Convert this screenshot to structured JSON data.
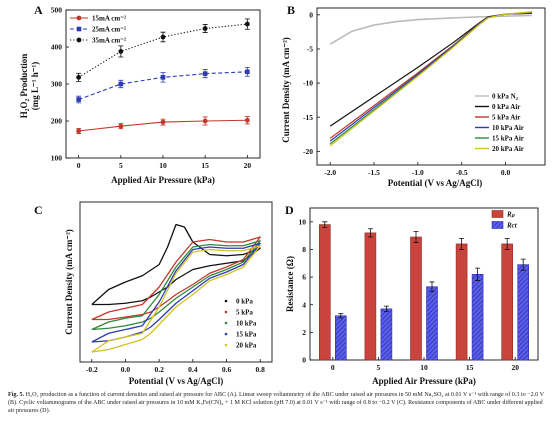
{
  "caption": {
    "figure_no": "Fig. 5.",
    "text": "H₂O₂ production as a function of current densities and raised air pressure for ABC (A). Linear sweep voltammetry of the ABC under raised air pressures in 50 mM Na₂SO₄ at 0.01 V s⁻¹ with range of 0.3 to −2.0 V (B). Cyclic voltammograms of the ABC under raised air pressures in 10 mM K₃Fe(CN)₆ + 1 M KCl solution (pH 7.0) at 0.01 V s⁻¹ with range of 0.8 to −0.2 V (C). Resistance components of ABC under different applied air pressures (D)."
  },
  "chart_data": [
    {
      "panel": "A",
      "type": "line",
      "xlabel": "Applied Air Pressure (kPa)",
      "ylabel": "H₂O₂ Production (mg L⁻¹ h⁻¹)",
      "xlim": [
        -1.5,
        21.5
      ],
      "ylim": [
        100,
        500
      ],
      "xticks": [
        0,
        5,
        10,
        15,
        20
      ],
      "yticks": [
        100,
        200,
        300,
        400,
        500
      ],
      "x": [
        0,
        5,
        10,
        15,
        20
      ],
      "legend_position": "top-left",
      "series": [
        {
          "name": "15mA cm⁻²",
          "values": [
            173,
            186,
            197,
            200,
            202
          ],
          "errors": [
            7,
            7,
            8,
            11,
            10
          ],
          "color": "#c0392b",
          "style": "solid",
          "marker": "circle"
        },
        {
          "name": "25mA cm⁻²",
          "values": [
            258,
            300,
            318,
            328,
            333
          ],
          "errors": [
            9,
            10,
            13,
            11,
            12
          ],
          "color": "#2e3bb5",
          "style": "dashed",
          "marker": "square"
        },
        {
          "name": "35mA cm⁻²",
          "values": [
            318,
            388,
            427,
            450,
            462
          ],
          "errors": [
            11,
            15,
            13,
            11,
            14
          ],
          "color": "#111111",
          "style": "dotted",
          "marker": "circle"
        }
      ]
    },
    {
      "panel": "B",
      "type": "line",
      "xlabel": "Potential (V vs Ag/AgCl)",
      "ylabel": "Current Density (mA cm⁻²)",
      "xlim": [
        -2.15,
        0.45
      ],
      "ylim": [
        -22,
        1
      ],
      "xticks": [
        -2.0,
        -1.5,
        -1.0,
        -0.5,
        0.0
      ],
      "xtick_labels": [
        "-2.0",
        "-1.5",
        "-1.0",
        "-0.5",
        "0.0"
      ],
      "yticks": [
        0,
        -5,
        -10,
        -15,
        -20
      ],
      "legend_position": "bottom-right",
      "series": [
        {
          "name": "0 kPa N₂",
          "color": "#bbbbbb",
          "x": [
            -2.0,
            -1.75,
            -1.5,
            -1.25,
            -1.0,
            -0.6,
            -0.3,
            0.0,
            0.3
          ],
          "values": [
            -4.3,
            -2.4,
            -1.5,
            -1.0,
            -0.7,
            -0.45,
            -0.3,
            -0.2,
            -0.1
          ]
        },
        {
          "name": "0 kPa Air",
          "color": "#111111",
          "x": [
            -2.0,
            -1.5,
            -1.0,
            -0.6,
            -0.3,
            -0.2,
            0.0,
            0.3
          ],
          "values": [
            -16.3,
            -12.0,
            -7.7,
            -4.1,
            -1.2,
            -0.3,
            0.1,
            0.2
          ]
        },
        {
          "name": "5 kPa Air",
          "color": "#c0392b",
          "x": [
            -2.0,
            -1.5,
            -1.0,
            -0.6,
            -0.3,
            -0.2,
            0.0,
            0.3
          ],
          "values": [
            -18.1,
            -13.3,
            -8.5,
            -4.5,
            -1.3,
            -0.4,
            0.1,
            0.3
          ]
        },
        {
          "name": "10 kPa Air",
          "color": "#2e3bb5",
          "x": [
            -2.0,
            -1.5,
            -1.0,
            -0.6,
            -0.3,
            -0.2,
            0.0,
            0.3
          ],
          "values": [
            -18.5,
            -13.6,
            -8.7,
            -4.6,
            -1.35,
            -0.4,
            0.1,
            0.35
          ]
        },
        {
          "name": "15 kPa Air",
          "color": "#2e8b3a",
          "x": [
            -2.0,
            -1.5,
            -1.0,
            -0.6,
            -0.3,
            -0.2,
            0.0,
            0.3
          ],
          "values": [
            -18.9,
            -13.9,
            -8.9,
            -4.7,
            -1.4,
            -0.45,
            0.1,
            0.4
          ]
        },
        {
          "name": "20 kPa Air",
          "color": "#d4c21f",
          "x": [
            -2.0,
            -1.5,
            -1.0,
            -0.6,
            -0.3,
            -0.2,
            0.0,
            0.3
          ],
          "values": [
            -19.2,
            -14.1,
            -9.0,
            -4.8,
            -1.45,
            -0.45,
            0.1,
            0.45
          ]
        }
      ]
    },
    {
      "panel": "C",
      "type": "line",
      "xlabel": "Potential (V vs Ag/AgCl)",
      "ylabel": "Current Density (mA cm⁻²)",
      "xlim": [
        -0.27,
        0.87
      ],
      "ylim": [
        -3.3,
        3.1
      ],
      "xticks": [
        -0.2,
        0.0,
        0.2,
        0.4,
        0.6,
        0.8
      ],
      "xtick_labels": [
        "-0.2",
        "0.0",
        "0.2",
        "0.4",
        "0.6",
        "0.8"
      ],
      "yticks": [],
      "legend_position": "bottom-right",
      "series": [
        {
          "name": "0 kPa",
          "color": "#111111",
          "forward": {
            "x": [
              -0.2,
              -0.1,
              0.0,
              0.1,
              0.2,
              0.25,
              0.3,
              0.35,
              0.4,
              0.5,
              0.6,
              0.7,
              0.8
            ],
            "values": [
              -1.0,
              -0.4,
              -0.1,
              0.15,
              0.6,
              1.3,
              2.2,
              2.1,
              1.5,
              1.0,
              0.95,
              1.0,
              1.25
            ]
          },
          "reverse": {
            "x": [
              0.8,
              0.7,
              0.6,
              0.5,
              0.4,
              0.3,
              0.25,
              0.2,
              0.15,
              0.1,
              0.0,
              -0.1,
              -0.2
            ],
            "values": [
              1.25,
              0.75,
              0.65,
              0.55,
              0.4,
              0.0,
              -0.3,
              -0.5,
              -0.7,
              -0.85,
              -0.95,
              -1.0,
              -1.0
            ]
          }
        },
        {
          "name": "5 kPa",
          "color": "#c0392b",
          "forward": {
            "x": [
              -0.2,
              -0.1,
              0.0,
              0.1,
              0.2,
              0.3,
              0.4,
              0.5,
              0.6,
              0.7,
              0.8
            ],
            "values": [
              -1.6,
              -1.3,
              -1.15,
              -1.0,
              -0.3,
              0.7,
              1.5,
              1.6,
              1.5,
              1.5,
              1.7
            ]
          },
          "reverse": {
            "x": [
              0.8,
              0.7,
              0.6,
              0.5,
              0.4,
              0.3,
              0.2,
              0.15,
              0.1,
              0.0,
              -0.1,
              -0.2
            ],
            "values": [
              1.7,
              0.8,
              0.5,
              0.25,
              -0.2,
              -0.6,
              -1.1,
              -1.3,
              -1.4,
              -1.5,
              -1.6,
              -1.6
            ]
          }
        },
        {
          "name": "10 kPa",
          "color": "#2e8b3a",
          "forward": {
            "x": [
              -0.2,
              -0.1,
              0.0,
              0.1,
              0.2,
              0.3,
              0.4,
              0.5,
              0.6,
              0.7,
              0.8
            ],
            "values": [
              -2.0,
              -1.7,
              -1.55,
              -1.45,
              -0.6,
              0.5,
              1.3,
              1.4,
              1.35,
              1.35,
              1.55
            ]
          },
          "reverse": {
            "x": [
              0.8,
              0.7,
              0.6,
              0.5,
              0.4,
              0.3,
              0.2,
              0.15,
              0.1,
              0.0,
              -0.1,
              -0.2
            ],
            "values": [
              1.55,
              0.7,
              0.4,
              0.15,
              -0.3,
              -0.75,
              -1.3,
              -1.55,
              -1.7,
              -1.85,
              -1.95,
              -2.0
            ]
          }
        },
        {
          "name": "15 kPa",
          "color": "#2e3bb5",
          "forward": {
            "x": [
              -0.2,
              -0.1,
              0.0,
              0.1,
              0.2,
              0.3,
              0.4,
              0.5,
              0.6,
              0.7,
              0.8
            ],
            "values": [
              -2.5,
              -2.15,
              -2.0,
              -1.85,
              -0.9,
              0.35,
              1.2,
              1.3,
              1.25,
              1.25,
              1.45
            ]
          },
          "reverse": {
            "x": [
              0.8,
              0.7,
              0.6,
              0.5,
              0.4,
              0.3,
              0.2,
              0.15,
              0.1,
              0.0,
              -0.1,
              -0.2
            ],
            "values": [
              1.45,
              0.6,
              0.3,
              0.05,
              -0.45,
              -0.95,
              -1.6,
              -1.9,
              -2.1,
              -2.3,
              -2.45,
              -2.5
            ]
          }
        },
        {
          "name": "20 kPa",
          "color": "#d4c21f",
          "forward": {
            "x": [
              -0.2,
              -0.1,
              0.0,
              0.1,
              0.2,
              0.3,
              0.4,
              0.5,
              0.6,
              0.7,
              0.8
            ],
            "values": [
              -2.9,
              -2.45,
              -2.3,
              -2.15,
              -1.1,
              0.25,
              1.1,
              1.2,
              1.15,
              1.15,
              1.35
            ]
          },
          "reverse": {
            "x": [
              0.8,
              0.7,
              0.6,
              0.5,
              0.4,
              0.3,
              0.2,
              0.15,
              0.1,
              0.0,
              -0.1,
              -0.2
            ],
            "values": [
              1.35,
              0.5,
              0.2,
              -0.05,
              -0.6,
              -1.1,
              -1.8,
              -2.15,
              -2.4,
              -2.6,
              -2.8,
              -2.9
            ]
          }
        }
      ]
    },
    {
      "panel": "D",
      "type": "bar",
      "xlabel": "Applied Air Pressure (kPa)",
      "ylabel": "Resistance (Ω)",
      "categories": [
        "0",
        "5",
        "10",
        "15",
        "20"
      ],
      "ylim": [
        0,
        11
      ],
      "yticks": [
        0,
        2,
        4,
        6,
        8,
        10
      ],
      "legend_position": "top-right",
      "series": [
        {
          "name": "Rp",
          "values": [
            9.8,
            9.2,
            8.9,
            8.4,
            8.4
          ],
          "errors": [
            0.2,
            0.3,
            0.4,
            0.4,
            0.4
          ],
          "color": "#c8443c"
        },
        {
          "name": "Rct",
          "values": [
            3.2,
            3.7,
            5.3,
            6.2,
            6.9
          ],
          "errors": [
            0.15,
            0.2,
            0.35,
            0.45,
            0.4
          ],
          "color": "#3b3fd1"
        }
      ]
    }
  ],
  "panels": {
    "a": {
      "letter": "A",
      "ylabel_line1": "H₂O₂ Production",
      "ylabel_line2": "(mg L⁻¹ h⁻¹)",
      "xlabel": "Applied Air Pressure (kPa)"
    },
    "b": {
      "letter": "B",
      "ylabel": "Current Density (mA cm⁻²)",
      "xlabel": "Potential (V vs Ag/AgCl)"
    },
    "c": {
      "letter": "C",
      "ylabel": "Current Density (mA cm⁻²)",
      "xlabel": "Potential (V vs Ag/AgCl)"
    },
    "d": {
      "letter": "D",
      "ylabel": "Resistance (Ω)",
      "xlabel": "Applied Air Pressure (kPa)",
      "legend_labels": [
        "Rₚ",
        "Rct"
      ]
    }
  }
}
